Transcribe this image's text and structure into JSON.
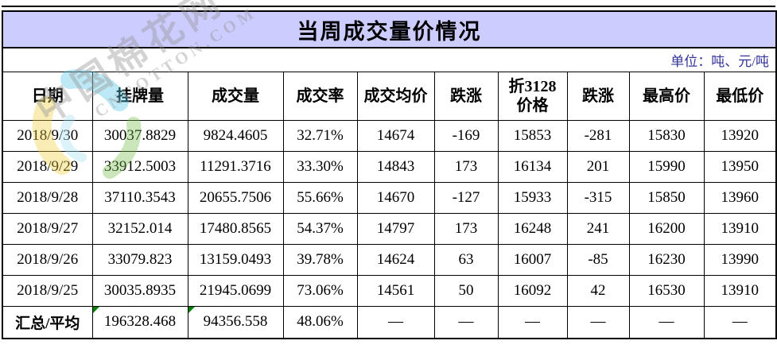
{
  "title": "当周成交量价情况",
  "unit_note": "单位：吨、元/吨",
  "watermark": {
    "text_cn": "中国棉花网",
    "text_en": "CNCOTTON.COM",
    "logo": "cotton-swirl-logo"
  },
  "colors": {
    "title_bg": "#ccccff",
    "unit_text": "#333399",
    "border": "#000000",
    "flag_green": "#008000"
  },
  "table": {
    "headers": [
      "日期",
      "挂牌量",
      "成交量",
      "成交率",
      "成交均价",
      "跌涨",
      "折3128\n价格",
      "跌涨",
      "最高价",
      "最低价"
    ],
    "rows": [
      [
        "2018/9/30",
        "30037.8829",
        "9824.4605",
        "32.71%",
        "14674",
        "-169",
        "15853",
        "-281",
        "15830",
        "13920"
      ],
      [
        "2018/9/29",
        "33912.5003",
        "11291.3716",
        "33.30%",
        "14843",
        "173",
        "16134",
        "201",
        "15990",
        "13950"
      ],
      [
        "2018/9/28",
        "37110.3543",
        "20655.7506",
        "55.66%",
        "14670",
        "-127",
        "15933",
        "-315",
        "15850",
        "13960"
      ],
      [
        "2018/9/27",
        "32152.014",
        "17480.8565",
        "54.37%",
        "14797",
        "173",
        "16248",
        "241",
        "16200",
        "13910"
      ],
      [
        "2018/9/26",
        "33079.823",
        "13159.0493",
        "39.78%",
        "14624",
        "63",
        "16007",
        "-85",
        "16230",
        "13990"
      ],
      [
        "2018/9/25",
        "30035.8935",
        "21945.0699",
        "73.06%",
        "14561",
        "50",
        "16092",
        "42",
        "16530",
        "13910"
      ],
      [
        "汇总/平均",
        "196328.468",
        "94356.558",
        "48.06%",
        "—",
        "—",
        "—",
        "—",
        "—",
        "—"
      ]
    ],
    "summary_row_index": 6,
    "green_flag_cells": [
      [
        6,
        1
      ],
      [
        6,
        2
      ]
    ]
  }
}
